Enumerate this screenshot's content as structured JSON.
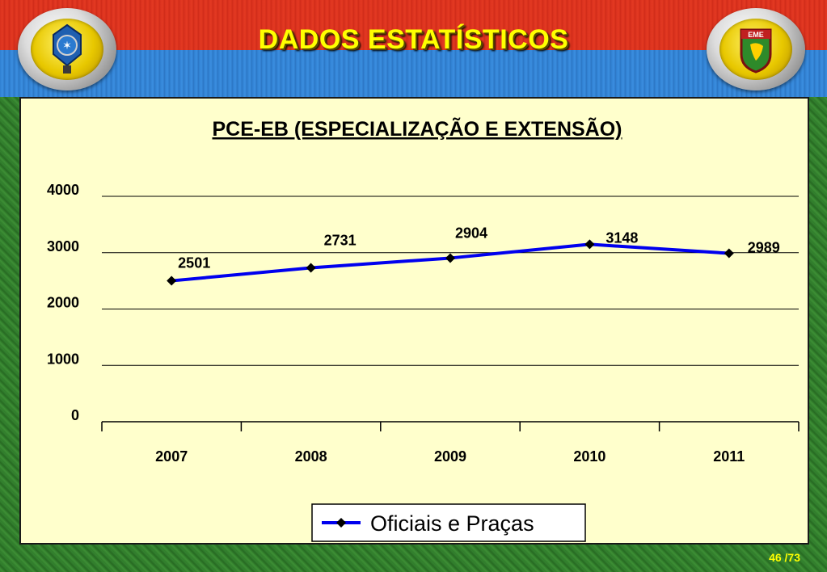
{
  "header": {
    "title": "DADOS ESTATÍSTICOS"
  },
  "emblems": {
    "right_label": "EME"
  },
  "page": {
    "number": "46 /73"
  },
  "colors": {
    "line": "#0000ee",
    "marker": "#000000",
    "title": "#ffff00",
    "panel": "#ffffcc"
  },
  "chart_data": {
    "type": "line",
    "title": "PCE-EB (ESPECIALIZAÇÃO E EXTENSÃO)",
    "xlabel": "",
    "ylabel": "",
    "categories": [
      "2007",
      "2008",
      "2009",
      "2010",
      "2011"
    ],
    "series": [
      {
        "name": "Oficiais e Praças",
        "values": [
          2501,
          2731,
          2904,
          3148,
          2989
        ]
      }
    ],
    "ylim": [
      0,
      4000
    ],
    "yticks": [
      "0",
      "1000",
      "2000",
      "3000",
      "4000"
    ],
    "grid": true,
    "legend": "bottom-center"
  }
}
